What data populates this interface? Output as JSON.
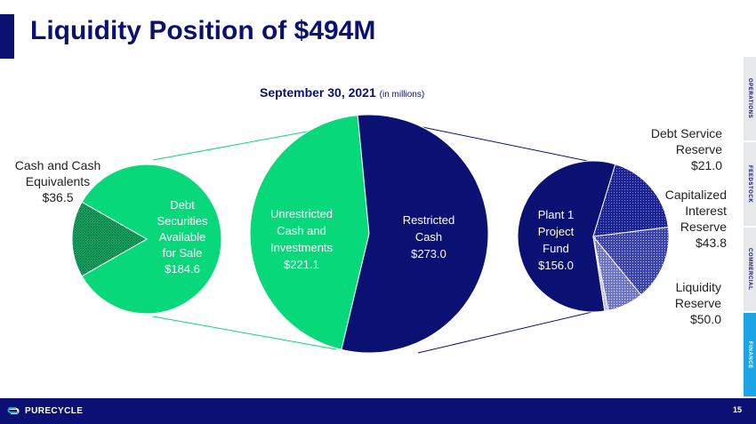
{
  "title": "Liquidity Position of $494M",
  "subtitle": "September 30, 2021",
  "subtitle_note": "(in millions)",
  "nav_tabs": [
    {
      "label": "OPERATIONS",
      "active": false
    },
    {
      "label": "FEEDSTOCK",
      "active": false
    },
    {
      "label": "COMMERCIAL",
      "active": false
    },
    {
      "label": "FINANCE",
      "active": true
    }
  ],
  "footer": {
    "logo_text": "PURECYCLE",
    "page_number": "15"
  },
  "colors": {
    "navy": "#0a1172",
    "green": "#07d97a",
    "accent_blue": "#1aa6e6"
  },
  "chart_data": [
    {
      "type": "pie",
      "name": "left",
      "slices": [
        {
          "label_lines": [
            "Debt",
            "Securities",
            "Available",
            "for Sale",
            "$184.6"
          ],
          "value": 184.6
        },
        {
          "label_lines": [
            "Cash and Cash",
            "Equivalents",
            "$36.5"
          ],
          "value": 36.5
        }
      ]
    },
    {
      "type": "pie",
      "name": "center",
      "slices": [
        {
          "label_lines": [
            "Unrestricted",
            "Cash and",
            "Investments",
            "$221.1"
          ],
          "value": 221.1
        },
        {
          "label_lines": [
            "Restricted",
            "Cash",
            "$273.0"
          ],
          "value": 273.0
        }
      ]
    },
    {
      "type": "pie",
      "name": "right",
      "slices": [
        {
          "label_lines": [
            "Plant 1",
            "Project",
            "Fund",
            "$156.0"
          ],
          "value": 156.0
        },
        {
          "label_lines": [
            "",
            ""
          ],
          "value": 2.2
        },
        {
          "label_lines": [
            "Debt Service",
            "Reserve",
            "$21.0"
          ],
          "value": 21.0
        },
        {
          "label_lines": [
            "Capitalized",
            "Interest",
            "Reserve",
            "$43.8"
          ],
          "value": 43.8
        },
        {
          "label_lines": [
            "Liquidity",
            "Reserve",
            "$50.0"
          ],
          "value": 50.0
        }
      ]
    }
  ]
}
